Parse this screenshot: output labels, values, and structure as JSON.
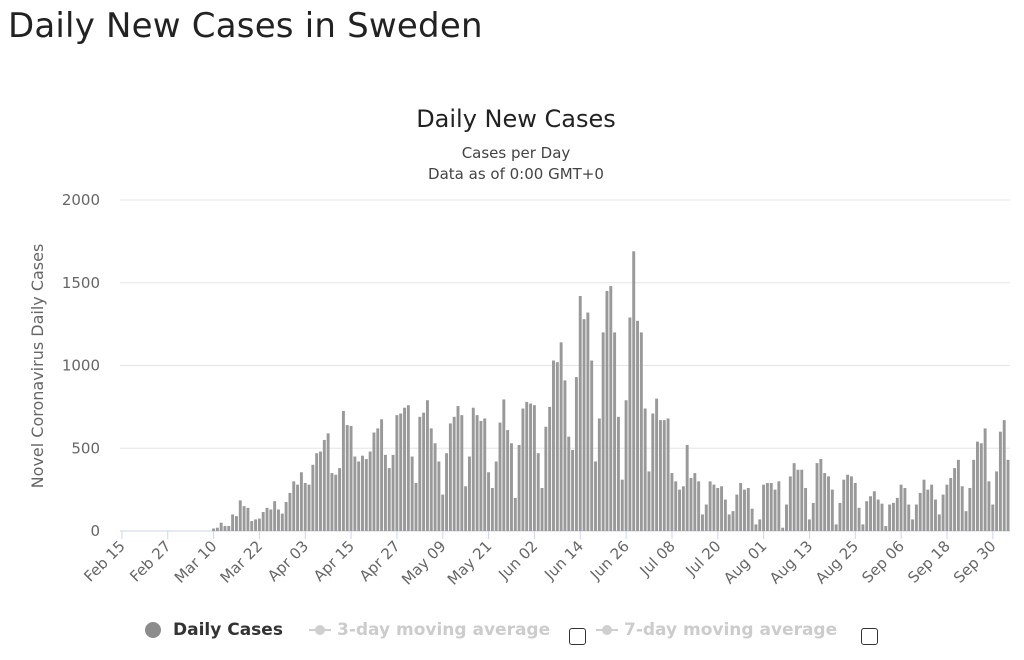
{
  "page_title": "Daily New Cases in Sweden",
  "chart_data": {
    "type": "bar",
    "title": "Daily New Cases",
    "subtitle_lines": [
      "Cases per Day",
      "Data as of 0:00 GMT+0"
    ],
    "ylabel": "Novel Coronavirus Daily Cases",
    "xlabel": "",
    "ylim": [
      0,
      2000
    ],
    "yticks": [
      0,
      500,
      1000,
      1500,
      2000
    ],
    "grid": true,
    "bar_color": "#999999",
    "x_tick_labels": [
      "Feb 15",
      "Feb 27",
      "Mar 10",
      "Mar 22",
      "Apr 03",
      "Apr 15",
      "Apr 27",
      "May 09",
      "May 21",
      "Jun 02",
      "Jun 14",
      "Jun 26",
      "Jul 08",
      "Jul 20",
      "Aug 01",
      "Aug 13",
      "Aug 25",
      "Sep 06",
      "Sep 18",
      "Sep 30"
    ],
    "x_start": "Feb 15",
    "x_end": "Oct 02",
    "series": [
      {
        "name": "Daily Cases",
        "values": [
          0,
          0,
          0,
          0,
          0,
          0,
          0,
          0,
          0,
          0,
          0,
          0,
          0,
          0,
          0,
          0,
          0,
          0,
          0,
          0,
          0,
          0,
          0,
          0,
          15,
          20,
          50,
          30,
          30,
          100,
          90,
          185,
          150,
          140,
          60,
          70,
          75,
          115,
          140,
          130,
          180,
          130,
          105,
          175,
          230,
          300,
          280,
          355,
          290,
          280,
          400,
          470,
          480,
          550,
          590,
          350,
          340,
          380,
          725,
          640,
          635,
          450,
          420,
          455,
          435,
          480,
          595,
          620,
          675,
          460,
          380,
          460,
          700,
          710,
          745,
          760,
          450,
          290,
          690,
          715,
          790,
          620,
          530,
          420,
          220,
          470,
          650,
          690,
          755,
          700,
          270,
          450,
          745,
          700,
          665,
          680,
          355,
          260,
          420,
          655,
          795,
          610,
          530,
          200,
          520,
          740,
          780,
          770,
          760,
          470,
          260,
          630,
          750,
          1030,
          1020,
          1140,
          910,
          570,
          490,
          930,
          1420,
          1280,
          1320,
          1030,
          420,
          680,
          1200,
          1450,
          1480,
          1200,
          690,
          310,
          790,
          1290,
          1690,
          1270,
          1200,
          740,
          360,
          710,
          800,
          670,
          670,
          680,
          350,
          300,
          250,
          270,
          520,
          320,
          350,
          300,
          100,
          160,
          300,
          280,
          260,
          270,
          190,
          100,
          120,
          220,
          290,
          250,
          260,
          135,
          40,
          70,
          280,
          290,
          290,
          250,
          300,
          20,
          160,
          330,
          410,
          370,
          370,
          260,
          70,
          170,
          410,
          435,
          350,
          330,
          250,
          40,
          170,
          310,
          340,
          330,
          290,
          140,
          40,
          180,
          210,
          240,
          190,
          165,
          30,
          160,
          170,
          200,
          280,
          260,
          160,
          70,
          160,
          230,
          310,
          250,
          280,
          190,
          100,
          220,
          280,
          320,
          380,
          430,
          270,
          120,
          260,
          430,
          540,
          530,
          620,
          300,
          160,
          360,
          600,
          670,
          430
        ]
      }
    ]
  },
  "legend": {
    "items": [
      {
        "label": "Daily Cases",
        "active": true
      },
      {
        "label": "3-day moving average",
        "active": false
      },
      {
        "label": "7-day moving average",
        "active": false
      }
    ]
  }
}
